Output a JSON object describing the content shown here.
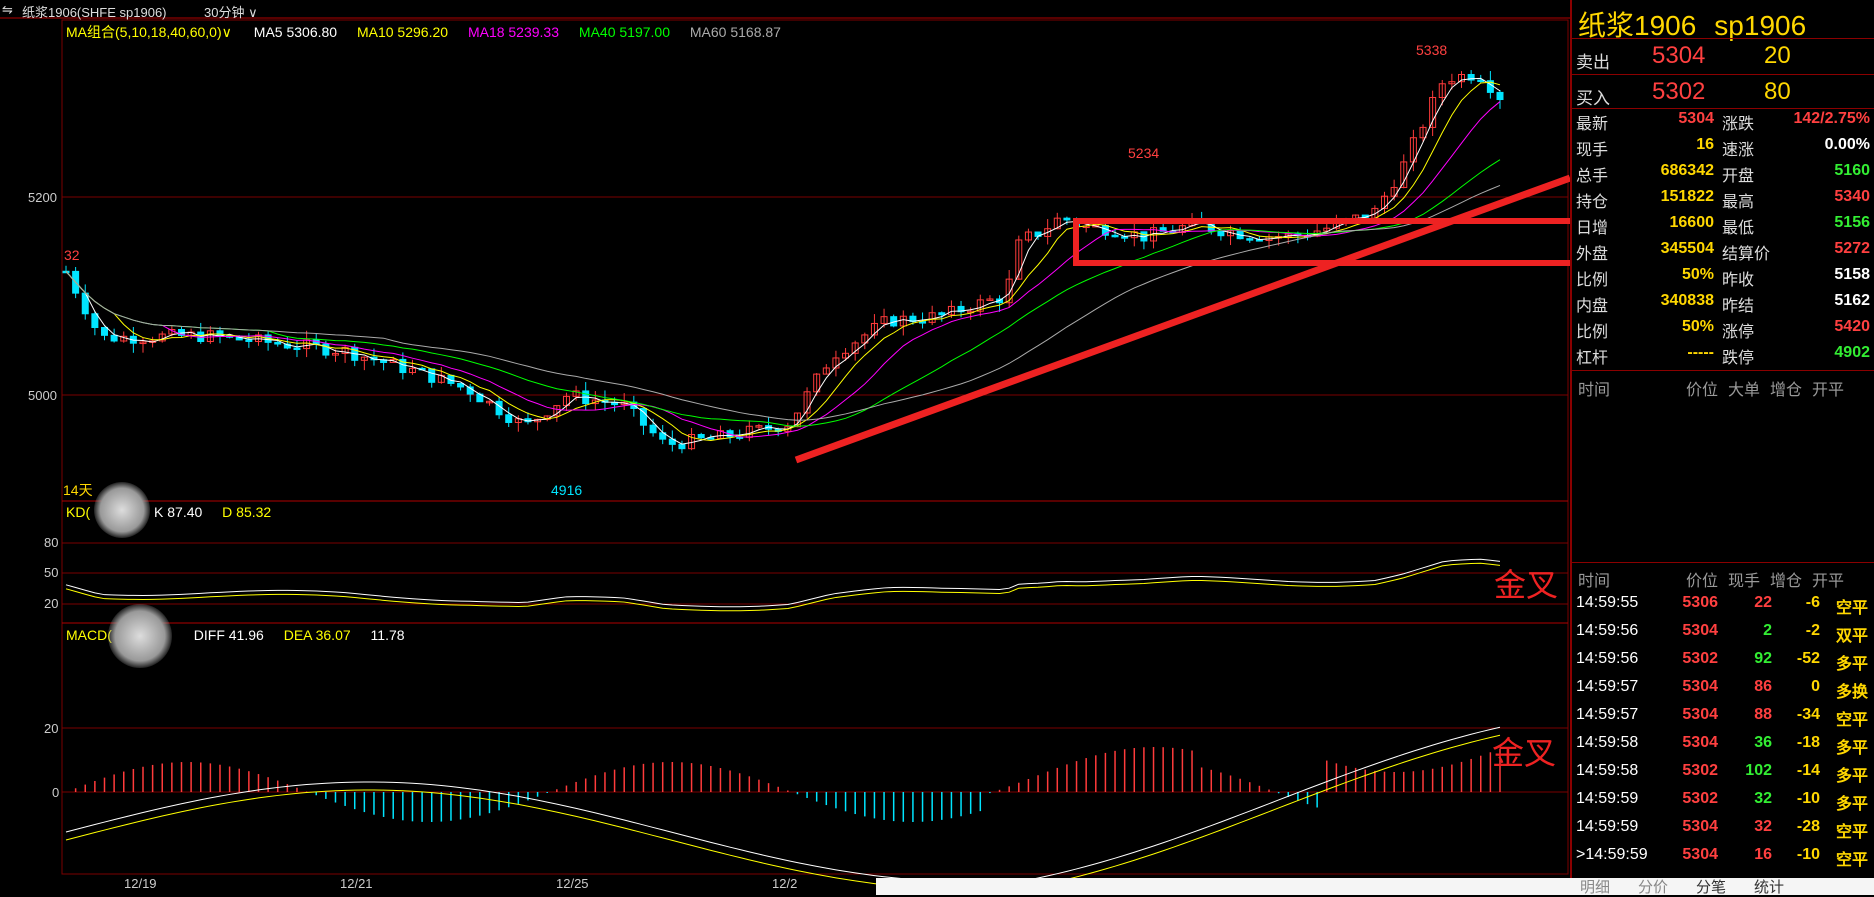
{
  "topbar": {
    "instrument": "纸浆1906(SHFE sp1906)",
    "period": "30分钟"
  },
  "legends": {
    "ma_label": "MA组合(5,10,18,40,60,0)",
    "ma5": "MA5 5306.80",
    "ma10": "MA10 5296.20",
    "ma18": "MA18 5239.33",
    "ma40": "MA40 5197.00",
    "ma60": "MA60 5168.87",
    "kd_label": "KD(",
    "k": "K 87.40",
    "d": "D 85.32",
    "macd_label": "MACD(",
    "diff": "DIFF 41.96",
    "dea": "DEA 36.07",
    "macd_val": "11.78",
    "days": "14天"
  },
  "axes": {
    "price_ticks": [
      "5200",
      "5000"
    ],
    "kd_ticks": [
      "80",
      "50",
      "20"
    ],
    "macd_ticks": [
      "20",
      "0"
    ],
    "dates": [
      "12/19",
      "12/21",
      "12/25",
      "12/2"
    ]
  },
  "annotations": {
    "high": "5338",
    "peak2": "5234",
    "low": "4916",
    "left": "32",
    "golden_cross": "金叉"
  },
  "colors": {
    "up": "#ff3b3b",
    "down": "#00e5ff",
    "ma5": "#ffffff",
    "ma10": "#ffff00",
    "ma18": "#ff00ff",
    "ma40": "#00ff00",
    "ma60": "#aaaaaa",
    "grid": "#7a0000",
    "annot": "#ee2222"
  },
  "panel": {
    "title_cn": "纸浆1906",
    "title_code": "sp1906",
    "sell": {
      "label": "卖出",
      "price": "5304",
      "vol": "20"
    },
    "buy": {
      "label": "买入",
      "price": "5302",
      "vol": "80"
    },
    "stats_left": [
      {
        "k": "最新",
        "v": "5304",
        "c": "#ff4040"
      },
      {
        "k": "现手",
        "v": "16",
        "c": "#ffd700"
      },
      {
        "k": "总手",
        "v": "686342",
        "c": "#ffd700"
      },
      {
        "k": "持仓",
        "v": "151822",
        "c": "#ffd700"
      },
      {
        "k": "日增",
        "v": "16600",
        "c": "#ffd700"
      },
      {
        "k": "外盘",
        "v": "345504",
        "c": "#ffd700"
      },
      {
        "k": "比例",
        "v": "50%",
        "c": "#ffd700"
      },
      {
        "k": "内盘",
        "v": "340838",
        "c": "#ffd700"
      },
      {
        "k": "比例",
        "v": "50%",
        "c": "#ffd700"
      },
      {
        "k": "杠杆",
        "v": "-----",
        "c": "#ffd700"
      }
    ],
    "stats_right": [
      {
        "k": "涨跌",
        "v": "142/2.75%",
        "c": "#ff4040"
      },
      {
        "k": "速涨",
        "v": "0.00%",
        "c": "#ffffff"
      },
      {
        "k": "开盘",
        "v": "5160",
        "c": "#33ee33"
      },
      {
        "k": "最高",
        "v": "5340",
        "c": "#ff4040"
      },
      {
        "k": "最低",
        "v": "5156",
        "c": "#33ee33"
      },
      {
        "k": "结算价",
        "v": "5272",
        "c": "#ff4040"
      },
      {
        "k": "昨收",
        "v": "5158",
        "c": "#ffffff"
      },
      {
        "k": "昨结",
        "v": "5162",
        "c": "#ffffff"
      },
      {
        "k": "涨停",
        "v": "5420",
        "c": "#ff4040"
      },
      {
        "k": "跌停",
        "v": "4902",
        "c": "#33ee33"
      }
    ],
    "big_headers": [
      "时间",
      "价位",
      "大单",
      "增仓",
      "开平"
    ],
    "tick_headers": [
      "时间",
      "价位",
      "现手",
      "增仓",
      "开平"
    ],
    "ticks": [
      {
        "t": "14:59:55",
        "p": "5306",
        "pc": "#ff4040",
        "v": "22",
        "vc": "#ff4040",
        "d": "-6",
        "o": "空平"
      },
      {
        "t": "14:59:56",
        "p": "5304",
        "pc": "#ff4040",
        "v": "2",
        "vc": "#33ee33",
        "d": "-2",
        "o": "双平"
      },
      {
        "t": "14:59:56",
        "p": "5302",
        "pc": "#ff4040",
        "v": "92",
        "vc": "#33ee33",
        "d": "-52",
        "o": "多平"
      },
      {
        "t": "14:59:57",
        "p": "5304",
        "pc": "#ff4040",
        "v": "86",
        "vc": "#ff4040",
        "d": "0",
        "o": "多换"
      },
      {
        "t": "14:59:57",
        "p": "5304",
        "pc": "#ff4040",
        "v": "88",
        "vc": "#ff4040",
        "d": "-34",
        "o": "空平"
      },
      {
        "t": "14:59:58",
        "p": "5304",
        "pc": "#ff4040",
        "v": "36",
        "vc": "#33ee33",
        "d": "-18",
        "o": "多平"
      },
      {
        "t": "14:59:58",
        "p": "5302",
        "pc": "#ff4040",
        "v": "102",
        "vc": "#33ee33",
        "d": "-14",
        "o": "多平"
      },
      {
        "t": "14:59:59",
        "p": "5302",
        "pc": "#ff4040",
        "v": "32",
        "vc": "#33ee33",
        "d": "-10",
        "o": "多平"
      },
      {
        "t": "14:59:59",
        "p": "5304",
        "pc": "#ff4040",
        "v": "32",
        "vc": "#ff4040",
        "d": "-28",
        "o": "空平"
      },
      {
        "t": ">14:59:59",
        "p": "5304",
        "pc": "#ff4040",
        "v": "16",
        "vc": "#ff4040",
        "d": "-10",
        "o": "空平"
      }
    ],
    "tabs": [
      "明细",
      "分价",
      "分笔",
      "统计"
    ]
  }
}
